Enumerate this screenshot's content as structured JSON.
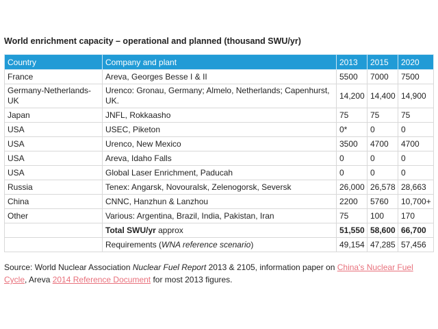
{
  "title": "World enrichment capacity – operational and planned (thousand SWU/yr)",
  "table": {
    "headers": [
      "Country",
      "Company and plant",
      "2013",
      "2015",
      "2020"
    ],
    "rows": [
      {
        "country": "France",
        "plant": "Areva, Georges Besse I & II",
        "y2013": "5500",
        "y2015": "7000",
        "y2020": "7500"
      },
      {
        "country": "Germany-Netherlands-UK",
        "plant": "Urenco: Gronau, Germany; Almelo, Netherlands; Capenhurst, UK.",
        "y2013": "14,200",
        "y2015": "14,400",
        "y2020": "14,900"
      },
      {
        "country": "Japan",
        "plant": "JNFL, Rokkaasho",
        "y2013": "75",
        "y2015": "75",
        "y2020": "75"
      },
      {
        "country": "USA",
        "plant": "USEC, Piketon",
        "y2013": "0*",
        "y2015": "0",
        "y2020": "0"
      },
      {
        "country": "USA",
        "plant": "Urenco, New Mexico",
        "y2013": "3500",
        "y2015": "4700",
        "y2020": "4700"
      },
      {
        "country": "USA",
        "plant": "Areva, Idaho Falls",
        "y2013": "0",
        "y2015": "0",
        "y2020": "0"
      },
      {
        "country": "USA",
        "plant": "Global Laser Enrichment, Paducah",
        "y2013": "0",
        "y2015": "0",
        "y2020": "0"
      },
      {
        "country": "Russia",
        "plant": "Tenex: Angarsk, Novouralsk, Zelenogorsk, Seversk",
        "y2013": "26,000",
        "y2015": "26,578",
        "y2020": "28,663"
      },
      {
        "country": "China",
        "plant": "CNNC, Hanzhun & Lanzhou",
        "y2013": "2200",
        "y2015": "5760",
        "y2020": "10,700+"
      },
      {
        "country": "Other",
        "plant": "Various: Argentina, Brazil, India, Pakistan, Iran",
        "y2013": "75",
        "y2015": "100",
        "y2020": "170"
      }
    ],
    "total": {
      "label_bold": "Total SWU/yr",
      "label_rest": " approx",
      "y2013": "51,550",
      "y2015": "58,600",
      "y2020": "66,700"
    },
    "requirements": {
      "label_pre": "Requirements (",
      "label_italic": "WNA reference scenario",
      "label_post": ")",
      "y2013": "49,154",
      "y2015": "47,285",
      "y2020": "57,456"
    }
  },
  "source": {
    "part1": "Source: World Nuclear Association ",
    "part2_italic": "Nuclear Fuel Report",
    "part3": " 2013 & 2105, information paper on ",
    "link1": "China's Nuclear Fuel Cycle",
    "part4": ", Areva ",
    "link2": "2014 Reference Document",
    "part5": " for most 2013 figures."
  },
  "colors": {
    "header_bg": "#219bd6",
    "link": "#e8707b"
  }
}
